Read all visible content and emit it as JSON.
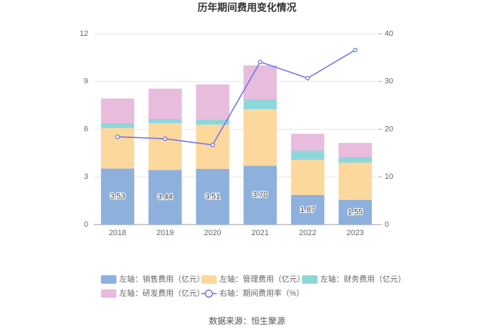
{
  "chart_data": {
    "type": "bar",
    "stacked": true,
    "title": "历年期间费用变化情况",
    "categories": [
      "2018",
      "2019",
      "2020",
      "2021",
      "2022",
      "2023"
    ],
    "series": [
      {
        "name": "左轴：销售费用（亿元）",
        "color": "#8eb0dd",
        "values": [
          3.53,
          3.44,
          3.51,
          3.7,
          1.87,
          1.55
        ],
        "value_labels": [
          "3.53",
          "3.44",
          "3.51",
          "3.70",
          "1.87",
          "1.55"
        ]
      },
      {
        "name": "左轴：管理费用（亿元）",
        "color": "#fdd89d",
        "values": [
          2.54,
          2.94,
          2.78,
          3.56,
          2.2,
          2.35
        ]
      },
      {
        "name": "左轴：财务费用（亿元）",
        "color": "#8dd7da",
        "values": [
          0.31,
          0.26,
          0.31,
          0.62,
          0.58,
          0.35
        ]
      },
      {
        "name": "左轴：研发费用（亿元）",
        "color": "#e8bcdc",
        "values": [
          1.55,
          1.91,
          2.21,
          2.13,
          1.06,
          0.89
        ]
      },
      {
        "name": "右轴：期间费用率（%）",
        "color": "#6f74e8",
        "type": "line",
        "axis": "y2",
        "values": [
          18.4,
          18.0,
          16.7,
          34.1,
          30.7,
          36.6
        ]
      }
    ],
    "ylim": [
      0,
      12
    ],
    "yticks": [
      0,
      3,
      6,
      9,
      12
    ],
    "y2lim": [
      0,
      40
    ],
    "y2ticks": [
      0,
      10,
      20,
      30,
      40
    ],
    "grid": true,
    "legend": "bottom",
    "source": "数据来源：恒生聚源"
  }
}
